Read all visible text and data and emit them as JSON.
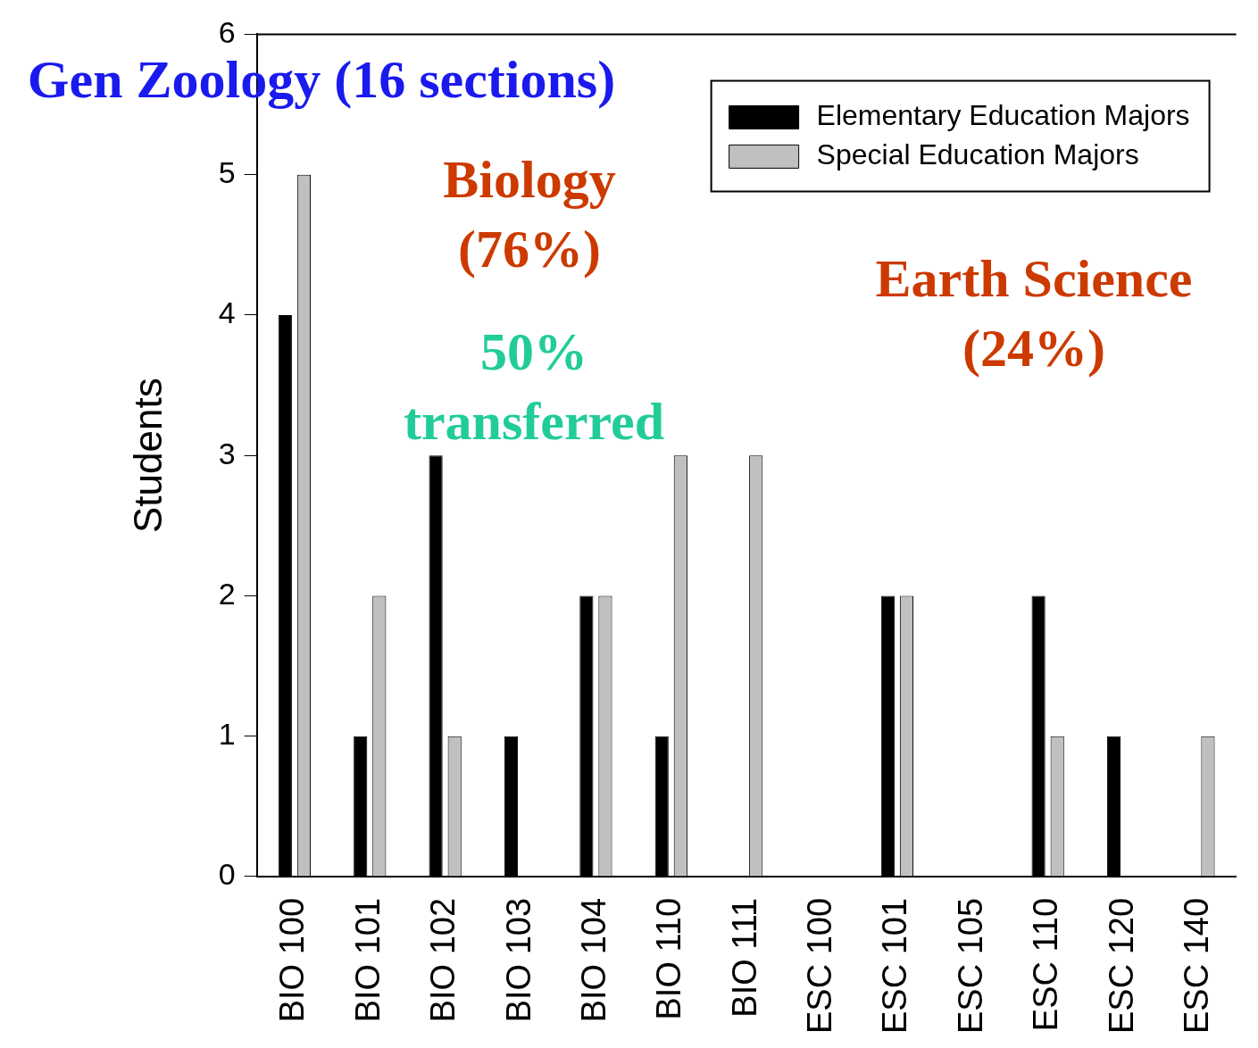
{
  "chart_data": {
    "type": "bar",
    "ylabel": "Students",
    "categories": [
      "BIO 100",
      "BIO 101",
      "BIO 102",
      "BIO 103",
      "BIO 104",
      "BIO 110",
      "BIO 111",
      "ESC 100",
      "ESC 101",
      "ESC 105",
      "ESC 110",
      "ESC 120",
      "ESC 140"
    ],
    "series": [
      {
        "name": "Elementary Education Majors",
        "color": "#000000",
        "values": [
          4,
          1,
          3,
          1,
          2,
          1,
          0,
          0,
          2,
          0,
          2,
          1,
          0
        ]
      },
      {
        "name": "Special Education Majors",
        "color": "#c0c0c0",
        "values": [
          5,
          2,
          1,
          0,
          2,
          3,
          3,
          0,
          2,
          0,
          1,
          0,
          1
        ]
      }
    ],
    "ylim": [
      0,
      6
    ],
    "yticks": [
      0,
      1,
      2,
      3,
      4,
      5,
      6
    ],
    "grid": false,
    "legend": "top right",
    "annotations": [
      "Gen Zoology (16 sections)",
      "Biology\n(76%)",
      "50%\ntransferred",
      "Earth Science\n(24%)"
    ]
  }
}
